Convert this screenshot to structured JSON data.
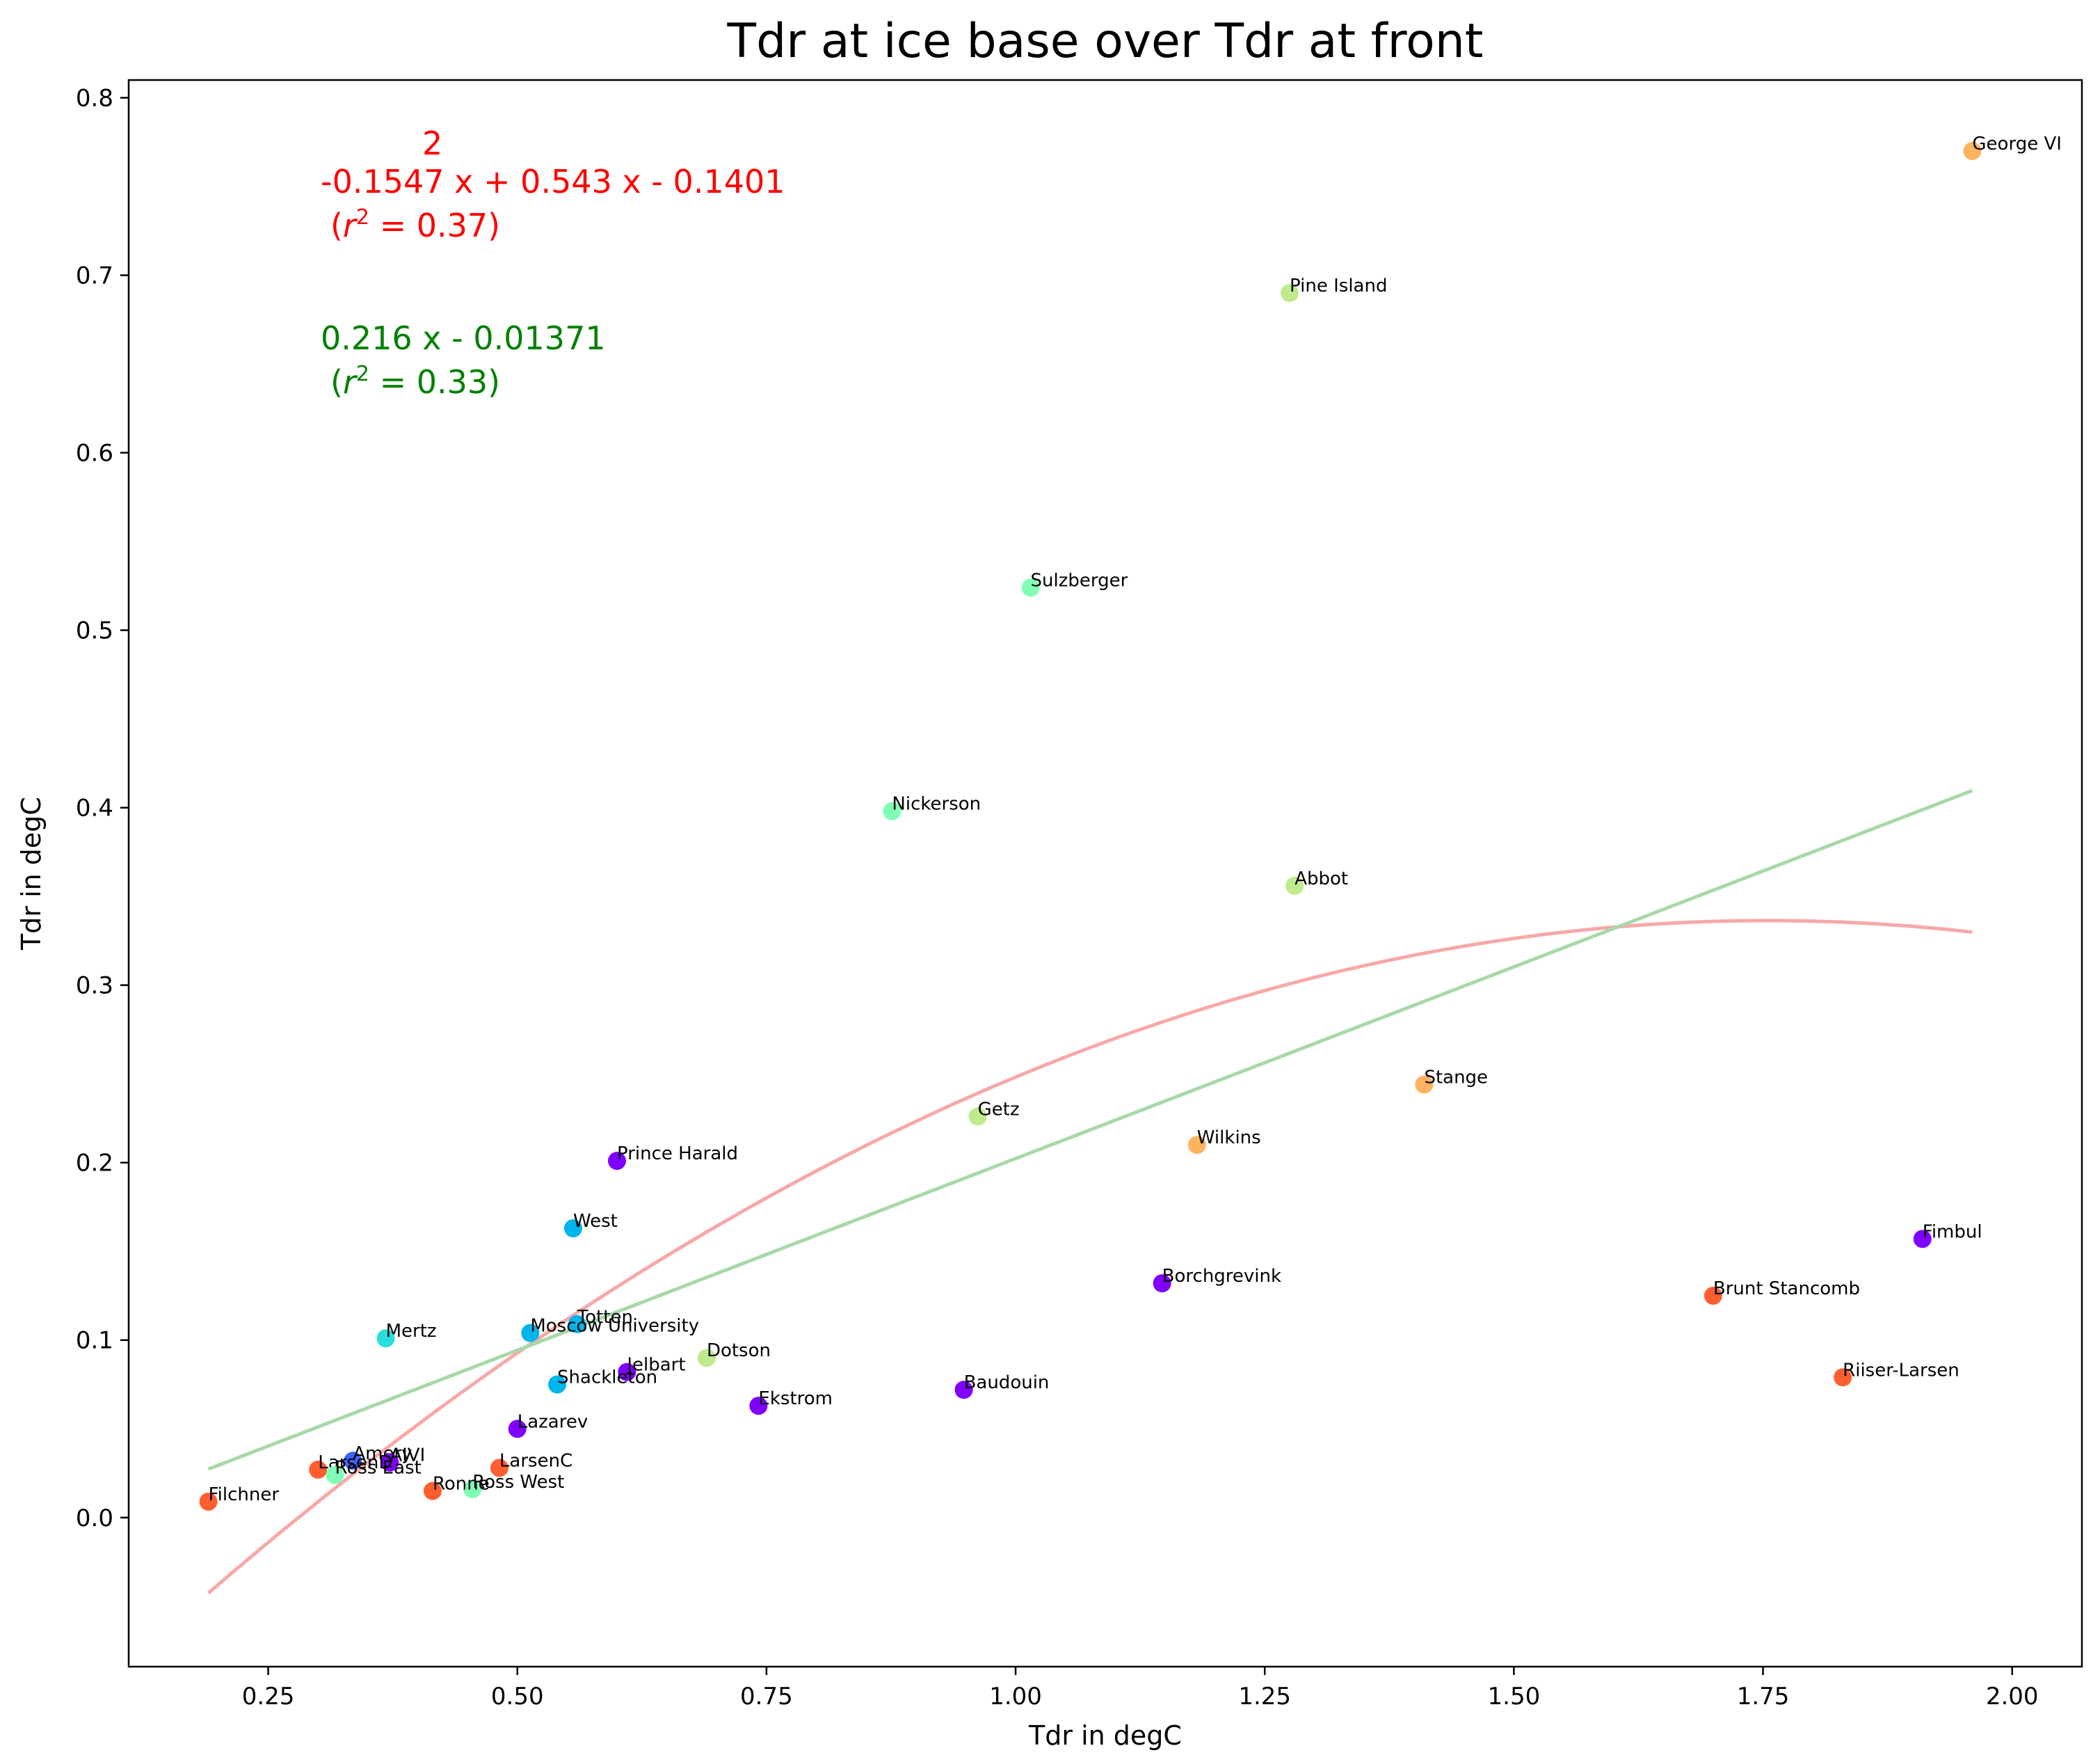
{
  "chart_data": {
    "type": "scatter",
    "title": "Tdr at ice base over Tdr at front",
    "xlabel": "Tdr in degC",
    "ylabel": "Tdr in degC",
    "xlim": [
      0.11,
      2.07
    ],
    "ylim": [
      -0.084,
      0.81
    ],
    "xticks": [
      0.25,
      0.5,
      0.75,
      1.0,
      1.25,
      1.5,
      1.75,
      2.0
    ],
    "xtick_labels": [
      "0.25",
      "0.50",
      "0.75",
      "1.00",
      "1.25",
      "1.50",
      "1.75",
      "2.00"
    ],
    "yticks": [
      0.0,
      0.1,
      0.2,
      0.3,
      0.4,
      0.5,
      0.6,
      0.7,
      0.8
    ],
    "ytick_labels": [
      "0.0",
      "0.1",
      "0.2",
      "0.3",
      "0.4",
      "0.5",
      "0.6",
      "0.7",
      "0.8"
    ],
    "grid": false,
    "points": [
      {
        "name": "George VI",
        "x": 1.96,
        "y": 0.77,
        "color": "#ffb360"
      },
      {
        "name": "Pine Island",
        "x": 1.275,
        "y": 0.69,
        "color": "#c0eb8d"
      },
      {
        "name": "Sulzberger",
        "x": 1.015,
        "y": 0.524,
        "color": "#80ffb4"
      },
      {
        "name": "Nickerson",
        "x": 0.876,
        "y": 0.398,
        "color": "#80ffb4"
      },
      {
        "name": "Abbot",
        "x": 1.28,
        "y": 0.356,
        "color": "#c0eb8d"
      },
      {
        "name": "Stange",
        "x": 1.41,
        "y": 0.244,
        "color": "#ffb360"
      },
      {
        "name": "Getz",
        "x": 0.962,
        "y": 0.226,
        "color": "#c0eb8d"
      },
      {
        "name": "Wilkins",
        "x": 1.182,
        "y": 0.21,
        "color": "#ffb360"
      },
      {
        "name": "Prince Harald",
        "x": 0.6,
        "y": 0.201,
        "color": "#8000ff"
      },
      {
        "name": "West",
        "x": 0.556,
        "y": 0.163,
        "color": "#00b5eb"
      },
      {
        "name": "Fimbul",
        "x": 1.91,
        "y": 0.157,
        "color": "#8000ff"
      },
      {
        "name": "Borchgrevink",
        "x": 1.147,
        "y": 0.132,
        "color": "#8000ff"
      },
      {
        "name": "Brunt Stancomb",
        "x": 1.7,
        "y": 0.125,
        "color": "#ff5f30"
      },
      {
        "name": "Totten",
        "x": 0.56,
        "y": 0.109,
        "color": "#00b5eb"
      },
      {
        "name": "Moscow University",
        "x": 0.513,
        "y": 0.104,
        "color": "#00b5eb"
      },
      {
        "name": "Mertz",
        "x": 0.368,
        "y": 0.101,
        "color": "#2adddd"
      },
      {
        "name": "Dotson",
        "x": 0.69,
        "y": 0.09,
        "color": "#c0eb8d"
      },
      {
        "name": "Jelbart",
        "x": 0.61,
        "y": 0.082,
        "color": "#8000ff"
      },
      {
        "name": "Riiser-Larsen",
        "x": 1.83,
        "y": 0.079,
        "color": "#ff5f30"
      },
      {
        "name": "Shackleton",
        "x": 0.54,
        "y": 0.075,
        "color": "#00b5eb"
      },
      {
        "name": "Baudouin",
        "x": 0.948,
        "y": 0.072,
        "color": "#8000ff"
      },
      {
        "name": "Ekstrom",
        "x": 0.742,
        "y": 0.063,
        "color": "#8000ff"
      },
      {
        "name": "Lazarev",
        "x": 0.5,
        "y": 0.05,
        "color": "#8000ff"
      },
      {
        "name": "Amery",
        "x": 0.335,
        "y": 0.032,
        "color": "#4062fa"
      },
      {
        "name": "AIVI",
        "x": 0.372,
        "y": 0.031,
        "color": "#8000ff"
      },
      {
        "name": "LarsenC",
        "x": 0.482,
        "y": 0.028,
        "color": "#ff5f30"
      },
      {
        "name": "LarsenD",
        "x": 0.3,
        "y": 0.027,
        "color": "#ff5f30"
      },
      {
        "name": "Ross East",
        "x": 0.317,
        "y": 0.024,
        "color": "#80ffb4"
      },
      {
        "name": "Ross West",
        "x": 0.455,
        "y": 0.016,
        "color": "#80ffb4"
      },
      {
        "name": "Ronne",
        "x": 0.415,
        "y": 0.015,
        "color": "#ff5f30"
      },
      {
        "name": "Filchner",
        "x": 0.19,
        "y": 0.009,
        "color": "#ff5f30"
      }
    ],
    "fits": [
      {
        "kind": "quadratic",
        "coeffs": [
          -0.1547,
          0.543,
          -0.1401
        ],
        "x_range": [
          0.19,
          1.96
        ],
        "color": "#f7a8a8"
      },
      {
        "kind": "linear",
        "coeffs": [
          0.216,
          -0.01371
        ],
        "x_range": [
          0.19,
          1.96
        ],
        "color": "#a8d8a8"
      }
    ],
    "annotations": {
      "quadratic": {
        "exponent": "2",
        "equation": "-0.1547 x + 0.543 x - 0.1401",
        "r2": " = 0.37)",
        "color": "#ff0000"
      },
      "linear": {
        "equation": "0.216 x - 0.01371",
        "r2": " = 0.33)",
        "color": "#008000"
      }
    }
  }
}
